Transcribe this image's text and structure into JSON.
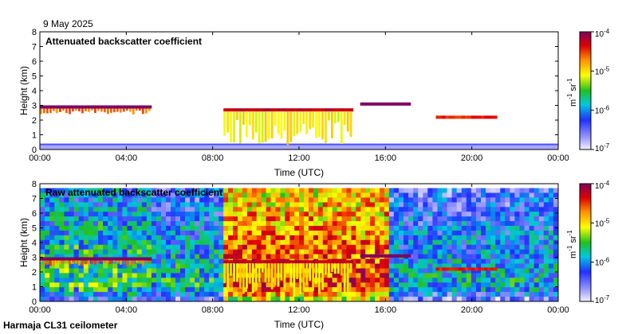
{
  "header": {
    "date": "9 May 2025"
  },
  "footer": {
    "instrument": "Harmaja CL31 ceilometer"
  },
  "colorbar": {
    "ticks": [
      "10",
      "10",
      "10",
      "10"
    ],
    "exponents": [
      "-4",
      "-5",
      "-6",
      "-7"
    ],
    "unit_m": "m",
    "unit_m_exp": "-1",
    "unit_sr": " sr",
    "unit_sr_exp": "-1"
  },
  "chart_data": [
    {
      "type": "heatmap",
      "title": "Attenuated backscatter coefficient",
      "xlabel": "Time (UTC)",
      "ylabel": "Height (km)",
      "xlim": [
        "00:00",
        "24:00"
      ],
      "ylim": [
        0,
        8
      ],
      "x_ticks": [
        "00:00",
        "04:00",
        "08:00",
        "12:00",
        "16:00",
        "20:00",
        "00:00"
      ],
      "y_ticks": [
        "0",
        "1",
        "2",
        "3",
        "4",
        "5",
        "6",
        "7",
        "8"
      ],
      "color_scale": {
        "type": "log",
        "min": 1e-07,
        "max": 0.0001,
        "colormap": "rainbow"
      },
      "features": [
        {
          "feature": "surface layer",
          "time_from": "00:00",
          "time_to": "24:00",
          "height_km": [
            0,
            0.4
          ],
          "log10_value": -6.7
        },
        {
          "feature": "cloud layer",
          "time_from": "00:00",
          "time_to": "05:10",
          "height_km": [
            2.6,
            3.0
          ],
          "log10_value": -4.2
        },
        {
          "feature": "cloud layer",
          "time_from": "08:30",
          "time_to": "14:30",
          "height_km": [
            0.5,
            2.8
          ],
          "log10_value": -4.6
        },
        {
          "feature": "cloud layer",
          "time_from": "14:50",
          "time_to": "17:10",
          "height_km": [
            2.9,
            3.2
          ],
          "log10_value": -4.2
        },
        {
          "feature": "cloud layer",
          "time_from": "18:20",
          "time_to": "21:10",
          "height_km": [
            2.0,
            2.3
          ],
          "log10_value": -4.8
        }
      ]
    },
    {
      "type": "heatmap",
      "title": "Raw attenuated backscatter coefficient",
      "xlabel": "Time (UTC)",
      "ylabel": "Height (km)",
      "xlim": [
        "00:00",
        "24:00"
      ],
      "ylim": [
        0,
        8
      ],
      "x_ticks": [
        "00:00",
        "04:00",
        "08:00",
        "12:00",
        "16:00",
        "20:00",
        "00:00"
      ],
      "y_ticks": [
        "0",
        "1",
        "2",
        "3",
        "4",
        "5",
        "6",
        "7",
        "8"
      ],
      "color_scale": {
        "type": "log",
        "min": 1e-07,
        "max": 0.0001,
        "colormap": "rainbow"
      },
      "features": [
        {
          "feature": "noise background",
          "time_from": "00:00",
          "time_to": "05:10",
          "height_km": [
            0,
            7.7
          ],
          "log10_value": -5.6
        },
        {
          "feature": "noise background",
          "time_from": "05:10",
          "time_to": "08:30",
          "height_km": [
            0,
            7.7
          ],
          "log10_value": -5.8
        },
        {
          "feature": "noise background",
          "time_from": "08:30",
          "time_to": "16:10",
          "height_km": [
            0,
            7.7
          ],
          "log10_value": -4.5
        },
        {
          "feature": "noise background",
          "time_from": "16:10",
          "time_to": "24:00",
          "height_km": [
            0,
            7.7
          ],
          "log10_value": -5.9
        },
        {
          "feature": "cloud layer",
          "time_from": "00:00",
          "time_to": "05:10",
          "height_km": [
            2.6,
            3.0
          ],
          "log10_value": -4.2
        },
        {
          "feature": "cloud layer",
          "time_from": "08:30",
          "time_to": "14:30",
          "height_km": [
            0.5,
            2.8
          ],
          "log10_value": -4.6
        },
        {
          "feature": "cloud layer",
          "time_from": "14:50",
          "time_to": "17:10",
          "height_km": [
            2.9,
            3.2
          ],
          "log10_value": -4.2
        },
        {
          "feature": "cloud layer",
          "time_from": "18:20",
          "time_to": "21:10",
          "height_km": [
            2.0,
            2.3
          ],
          "log10_value": -4.8
        }
      ]
    }
  ]
}
